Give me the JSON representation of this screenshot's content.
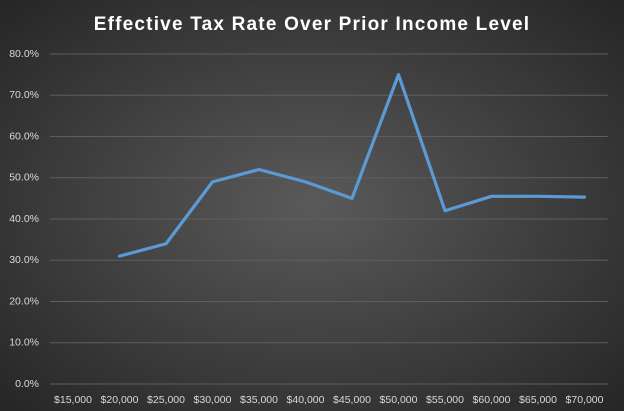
{
  "chart_data": {
    "type": "line",
    "title": "Effective Tax Rate Over Prior Income Level",
    "categories": [
      "$15,000",
      "$20,000",
      "$25,000",
      "$30,000",
      "$35,000",
      "$40,000",
      "$45,000",
      "$50,000",
      "$55,000",
      "$60,000",
      "$65,000",
      "$70,000"
    ],
    "values": [
      null,
      31,
      34,
      49,
      52,
      49,
      45,
      75,
      42,
      45.5,
      45.5,
      45.3
    ],
    "color": "#5b9bd5",
    "ylim": [
      0,
      80
    ],
    "yticks": [
      {
        "value": 0,
        "label": "0.0%"
      },
      {
        "value": 10,
        "label": "10.0%"
      },
      {
        "value": 20,
        "label": "20.0%"
      },
      {
        "value": 30,
        "label": "30.0%"
      },
      {
        "value": 40,
        "label": "40.0%"
      },
      {
        "value": 50,
        "label": "50.0%"
      },
      {
        "value": 60,
        "label": "60.0%"
      },
      {
        "value": 70,
        "label": "70.0%"
      },
      {
        "value": 80,
        "label": "80.0%"
      }
    ],
    "grid": true
  }
}
